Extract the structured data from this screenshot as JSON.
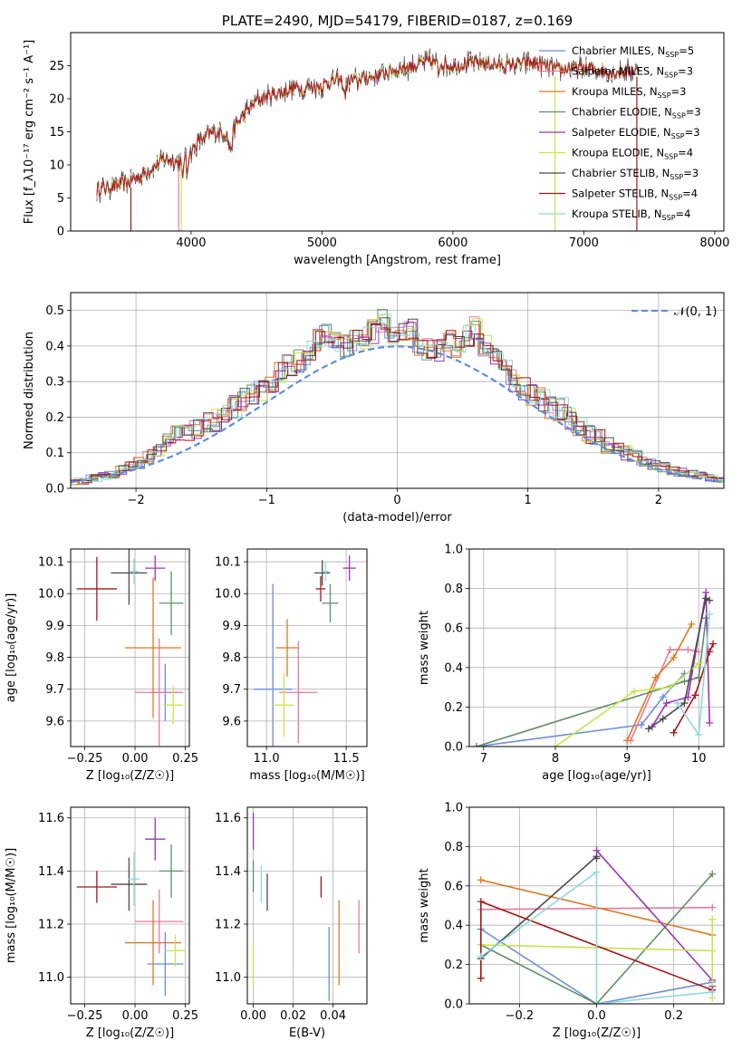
{
  "chart_data": [
    {
      "id": "spectrum",
      "type": "line",
      "title": "PLATE=2490, MJD=54179, FIBERID=0187, z=0.169",
      "xlabel": "wavelength [Angstrom, rest frame]",
      "ylabel": "Flux [f_λ10⁻¹⁷ erg cm⁻² s⁻¹ A⁻¹]",
      "xlim": [
        3080,
        8070
      ],
      "ylim": [
        0,
        30
      ],
      "xticks": [
        "4000",
        "5000",
        "6000",
        "7000",
        "8000"
      ],
      "yticks": [
        "0",
        "5",
        "10",
        "15",
        "20",
        "25"
      ],
      "grid": false,
      "legend_position": "right",
      "continuum": [
        [
          3280,
          6.3
        ],
        [
          3400,
          6.8
        ],
        [
          3500,
          7.2
        ],
        [
          3600,
          8.2
        ],
        [
          3700,
          9.5
        ],
        [
          3800,
          11.0
        ],
        [
          3900,
          10.5
        ],
        [
          4000,
          12.0
        ],
        [
          4100,
          14.5
        ],
        [
          4200,
          15.0
        ],
        [
          4300,
          14.8
        ],
        [
          4400,
          17.5
        ],
        [
          4500,
          19.8
        ],
        [
          4600,
          20.5
        ],
        [
          4700,
          21.0
        ],
        [
          4800,
          21.7
        ],
        [
          4900,
          21.8
        ],
        [
          5000,
          22.0
        ],
        [
          5100,
          22.8
        ],
        [
          5200,
          22.7
        ],
        [
          5300,
          23.1
        ],
        [
          5400,
          23.3
        ],
        [
          5500,
          24.0
        ],
        [
          5600,
          24.6
        ],
        [
          5700,
          25.0
        ],
        [
          5800,
          25.6
        ],
        [
          5900,
          25.4
        ],
        [
          6000,
          25.0
        ],
        [
          6100,
          25.3
        ],
        [
          6200,
          25.5
        ],
        [
          6300,
          25.2
        ],
        [
          6400,
          25.0
        ],
        [
          6500,
          25.3
        ],
        [
          6600,
          25.4
        ],
        [
          6700,
          25.0
        ],
        [
          6800,
          24.3
        ],
        [
          6900,
          24.6
        ],
        [
          7000,
          24.7
        ],
        [
          7100,
          24.4
        ],
        [
          7200,
          24.0
        ],
        [
          7300,
          24.1
        ],
        [
          7420,
          24.4
        ]
      ],
      "legend": [
        "Chabrier MILES, N_SSP=5",
        "Salpeter MILES, N_SSP=3",
        "Kroupa MILES, N_SSP=3",
        "Chabrier ELODIE, N_SSP=3",
        "Salpeter ELODIE, N_SSP=3",
        "Kroupa ELODIE, N_SSP=4",
        "Chabrier STELIB, N_SSP=3",
        "Salpeter STELIB, N_SSP=4",
        "Kroupa STELIB, N_SSP=4"
      ],
      "series_colors": [
        "#6a8fd8",
        "#e87aa0",
        "#e0781f",
        "#5f8f66",
        "#9a35b8",
        "#c8e34e",
        "#4a4a4a",
        "#a81515",
        "#8fd8df"
      ]
    },
    {
      "id": "residuals",
      "type": "line",
      "xlabel": "(data-model)/error",
      "ylabel": "Normed distribution",
      "xlim": [
        -2.5,
        2.5
      ],
      "ylim": [
        0,
        0.55
      ],
      "xticks": [
        "−2",
        "−1",
        "0",
        "1",
        "2"
      ],
      "yticks": [
        "0.0",
        "0.1",
        "0.2",
        "0.3",
        "0.4",
        "0.5"
      ],
      "grid": true,
      "legend": "𝒩(0, 1)",
      "legend_position": "top-right",
      "bin_width": 0.1,
      "histogram_reference": [
        0.02,
        0.02,
        0.03,
        0.035,
        0.04,
        0.05,
        0.06,
        0.07,
        0.09,
        0.11,
        0.13,
        0.15,
        0.16,
        0.17,
        0.18,
        0.19,
        0.21,
        0.23,
        0.25,
        0.26,
        0.28,
        0.3,
        0.33,
        0.35,
        0.36,
        0.38,
        0.42,
        0.44,
        0.42,
        0.4,
        0.41,
        0.42,
        0.44,
        0.47,
        0.42,
        0.44,
        0.45,
        0.4,
        0.39,
        0.39,
        0.42,
        0.4,
        0.43,
        0.45,
        0.4,
        0.36,
        0.33,
        0.3,
        0.28,
        0.26,
        0.25,
        0.23,
        0.22,
        0.2,
        0.17,
        0.15,
        0.14,
        0.12,
        0.11,
        0.1,
        0.09,
        0.08,
        0.07,
        0.06,
        0.05,
        0.045,
        0.04,
        0.035,
        0.03,
        0.025
      ]
    },
    {
      "id": "age_vs_Z",
      "type": "scatter",
      "xlabel": "Z [log₁₀(Z/Z☉)]",
      "ylabel": "age  [log₁₀(age/yr)]",
      "xlim": [
        -0.32,
        0.27
      ],
      "ylim": [
        9.52,
        10.14
      ],
      "xticks": [
        "−0.25",
        "0.00",
        "0.25"
      ],
      "yticks": [
        "9.6",
        "9.7",
        "9.8",
        "9.9",
        "10.0",
        "10.1"
      ],
      "grid": true,
      "points": [
        {
          "x": 0.15,
          "y": 9.69,
          "xerr": 0.08,
          "yerr": 0.09
        },
        {
          "x": 0.12,
          "y": 9.69,
          "xerr": 0.12,
          "yerr": 0.17
        },
        {
          "x": 0.09,
          "y": 9.83,
          "xerr": 0.14,
          "yerr": 0.22
        },
        {
          "x": 0.18,
          "y": 9.97,
          "xerr": 0.06,
          "yerr": 0.1
        },
        {
          "x": 0.1,
          "y": 10.08,
          "xerr": 0.05,
          "yerr": 0.04
        },
        {
          "x": 0.19,
          "y": 9.65,
          "xerr": 0.05,
          "yerr": 0.06
        },
        {
          "x": -0.03,
          "y": 10.065,
          "xerr": 0.09,
          "yerr": 0.1
        },
        {
          "x": -0.19,
          "y": 10.015,
          "xerr": 0.1,
          "yerr": 0.1
        },
        {
          "x": -0.005,
          "y": 10.07,
          "xerr": 0.02,
          "yerr": 0.04
        }
      ]
    },
    {
      "id": "age_vs_mass",
      "type": "scatter",
      "xlabel": "mass [log₁₀(M/M☉)]",
      "ylabel": "",
      "xlim": [
        10.88,
        11.63
      ],
      "ylim": [
        9.52,
        10.14
      ],
      "xticks": [
        "11.0",
        "11.5"
      ],
      "yticks": [
        "9.6",
        "9.7",
        "9.8",
        "9.9",
        "10.0",
        "10.1"
      ],
      "grid": true,
      "points": [
        {
          "x": 11.04,
          "y": 9.7,
          "xerr": 0.12,
          "yerr": 0.33
        },
        {
          "x": 11.2,
          "y": 9.69,
          "xerr": 0.12,
          "yerr": 0.16
        },
        {
          "x": 11.13,
          "y": 9.83,
          "xerr": 0.07,
          "yerr": 0.09
        },
        {
          "x": 11.4,
          "y": 9.97,
          "xerr": 0.05,
          "yerr": 0.06
        },
        {
          "x": 11.52,
          "y": 10.08,
          "xerr": 0.04,
          "yerr": 0.04
        },
        {
          "x": 11.11,
          "y": 9.65,
          "xerr": 0.06,
          "yerr": 0.1
        },
        {
          "x": 11.35,
          "y": 10.065,
          "xerr": 0.05,
          "yerr": 0.04
        },
        {
          "x": 11.34,
          "y": 10.015,
          "xerr": 0.03,
          "yerr": 0.04
        },
        {
          "x": 11.37,
          "y": 10.07,
          "xerr": 0.02,
          "yerr": 0.03
        }
      ]
    },
    {
      "id": "mass_weight_vs_age",
      "type": "line",
      "xlabel": "age  [log₁₀(age/yr)]",
      "ylabel": "mass weight",
      "xlim": [
        6.8,
        10.35
      ],
      "ylim": [
        0,
        1
      ],
      "xticks": [
        "7",
        "8",
        "9",
        "10"
      ],
      "yticks": [
        "0.0",
        "0.2",
        "0.4",
        "0.6",
        "0.8",
        "1.0"
      ],
      "grid": true,
      "series": [
        {
          "x": [
            6.9,
            9.2,
            9.5,
            9.8
          ],
          "y": [
            0.0,
            0.11,
            0.25,
            0.37
          ]
        },
        {
          "x": [
            9.05,
            9.6,
            9.85,
            10.0
          ],
          "y": [
            0.03,
            0.49,
            0.49,
            0.48
          ]
        },
        {
          "x": [
            9.0,
            9.4,
            9.65,
            9.9
          ],
          "y": [
            0.03,
            0.35,
            0.45,
            0.62
          ]
        },
        {
          "x": [
            6.9,
            9.8,
            10.0,
            10.1
          ],
          "y": [
            0.0,
            0.33,
            0.35,
            0.65
          ]
        },
        {
          "x": [
            9.35,
            9.55,
            9.85,
            10.1,
            10.15
          ],
          "y": [
            0.1,
            0.22,
            0.25,
            0.78,
            0.12
          ]
        },
        {
          "x": [
            8.0,
            9.1,
            9.6,
            10.0
          ],
          "y": [
            0.0,
            0.28,
            0.3,
            0.42
          ]
        },
        {
          "x": [
            9.3,
            9.5,
            9.8,
            10.1,
            10.15
          ],
          "y": [
            0.09,
            0.14,
            0.22,
            0.75,
            0.74
          ]
        },
        {
          "x": [
            9.65,
            9.95,
            10.15,
            10.2
          ],
          "y": [
            0.07,
            0.26,
            0.48,
            0.52
          ]
        },
        {
          "x": [
            9.7,
            10.0,
            10.15
          ],
          "y": [
            0.22,
            0.06,
            0.67
          ]
        }
      ]
    },
    {
      "id": "mass_vs_Z",
      "type": "scatter",
      "xlabel": "Z [log₁₀(Z/Z☉)]",
      "ylabel": "mass [log₁₀(M/M☉)]",
      "xlim": [
        -0.32,
        0.27
      ],
      "ylim": [
        10.9,
        11.64
      ],
      "xticks": [
        "−0.25",
        "0.00",
        "0.25"
      ],
      "yticks": [
        "11.0",
        "11.2",
        "11.4",
        "11.6"
      ],
      "grid": true,
      "points": [
        {
          "x": 0.15,
          "y": 11.05,
          "xerr": 0.09,
          "yerr": 0.12
        },
        {
          "x": 0.12,
          "y": 11.21,
          "xerr": 0.12,
          "yerr": 0.12
        },
        {
          "x": 0.09,
          "y": 11.13,
          "xerr": 0.14,
          "yerr": 0.16
        },
        {
          "x": 0.18,
          "y": 11.4,
          "xerr": 0.06,
          "yerr": 0.1
        },
        {
          "x": 0.1,
          "y": 11.52,
          "xerr": 0.05,
          "yerr": 0.08
        },
        {
          "x": 0.2,
          "y": 11.1,
          "xerr": 0.05,
          "yerr": 0.06
        },
        {
          "x": -0.03,
          "y": 11.35,
          "xerr": 0.09,
          "yerr": 0.1
        },
        {
          "x": -0.19,
          "y": 11.34,
          "xerr": 0.1,
          "yerr": 0.06
        },
        {
          "x": -0.005,
          "y": 11.37,
          "xerr": 0.03,
          "yerr": 0.1
        }
      ]
    },
    {
      "id": "mass_vs_ebv",
      "type": "scatter",
      "xlabel": "E(B-V)",
      "ylabel": "",
      "xlim": [
        -0.003,
        0.057
      ],
      "ylim": [
        10.9,
        11.64
      ],
      "xticks": [
        "0.00",
        "0.02",
        "0.04"
      ],
      "yticks": [
        "11.0",
        "11.2",
        "11.4",
        "11.6"
      ],
      "grid": true,
      "points": [
        {
          "x": 0.038,
          "y": 11.05,
          "xerr": 0,
          "yerr": 0.14
        },
        {
          "x": 0.053,
          "y": 11.19,
          "xerr": 0,
          "yerr": 0.1
        },
        {
          "x": 0.043,
          "y": 11.13,
          "xerr": 0,
          "yerr": 0.16
        },
        {
          "x": 0.0,
          "y": 11.38,
          "xerr": 0,
          "yerr": 0.06
        },
        {
          "x": 0.0,
          "y": 11.55,
          "xerr": 0,
          "yerr": 0.07
        },
        {
          "x": 0.0,
          "y": 11.05,
          "xerr": 0,
          "yerr": 0.08
        },
        {
          "x": 0.007,
          "y": 11.32,
          "xerr": 0,
          "yerr": 0.07
        },
        {
          "x": 0.034,
          "y": 11.34,
          "xerr": 0,
          "yerr": 0.04
        },
        {
          "x": 0.004,
          "y": 11.35,
          "xerr": 0,
          "yerr": 0.07
        }
      ]
    },
    {
      "id": "mass_weight_vs_Z",
      "type": "line",
      "xlabel": "Z [log₁₀(Z/Z☉)]",
      "ylabel": "mass weight",
      "xlim": [
        -0.33,
        0.33
      ],
      "ylim": [
        0,
        1
      ],
      "xticks": [
        "−0.2",
        "0.0",
        "0.2"
      ],
      "yticks": [
        "0.0",
        "0.2",
        "0.4",
        "0.6",
        "0.8",
        "1.0"
      ],
      "grid": true,
      "series": [
        {
          "x": [
            -0.3,
            0.0,
            0.3
          ],
          "y": [
            0.38,
            0.0,
            0.11
          ]
        },
        {
          "x": [
            -0.3,
            0.3
          ],
          "y": [
            0.48,
            0.49
          ]
        },
        {
          "x": [
            -0.3,
            0.3
          ],
          "y": [
            0.63,
            0.35
          ]
        },
        {
          "x": [
            -0.3,
            0.0,
            0.3
          ],
          "y": [
            0.3,
            0.0,
            0.66
          ]
        },
        {
          "x": [
            0.0,
            0.3,
            0.3
          ],
          "y": [
            0.78,
            0.12,
            0.09
          ]
        },
        {
          "x": [
            -0.3,
            0.3,
            0.3,
            0.3
          ],
          "y": [
            0.3,
            0.27,
            0.43,
            0.03
          ]
        },
        {
          "x": [
            -0.3,
            0.0,
            0.0
          ],
          "y": [
            0.23,
            0.75,
            0.74
          ]
        },
        {
          "x": [
            -0.3,
            -0.3,
            0.3
          ],
          "y": [
            0.13,
            0.52,
            0.07
          ]
        },
        {
          "x": [
            -0.3,
            0.0,
            0.0,
            0.3
          ],
          "y": [
            0.24,
            0.67,
            0.0,
            0.06
          ]
        }
      ]
    }
  ],
  "layout_colors": [
    "#6a8fd8",
    "#e87aa0",
    "#e0781f",
    "#5f8f66",
    "#9a35b8",
    "#c8e34e",
    "#4a4a4a",
    "#a81515",
    "#8fd8df"
  ]
}
